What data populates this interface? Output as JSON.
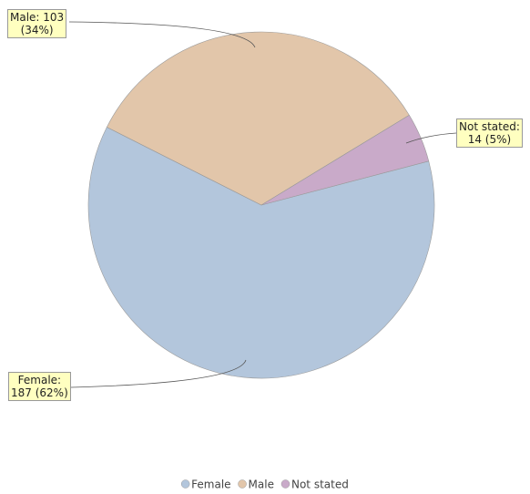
{
  "chart_data": {
    "type": "pie",
    "categories": [
      "Female",
      "Male",
      "Not stated"
    ],
    "values": [
      187,
      103,
      14
    ],
    "value_labels": [
      "Female:\n187 (62%)",
      "Male: 103\n(34%)",
      "Not stated:\n14 (5%)"
    ],
    "colors": [
      "#b3c6dc",
      "#e2c6aa",
      "#c9aac9"
    ],
    "legend": "bottom"
  }
}
